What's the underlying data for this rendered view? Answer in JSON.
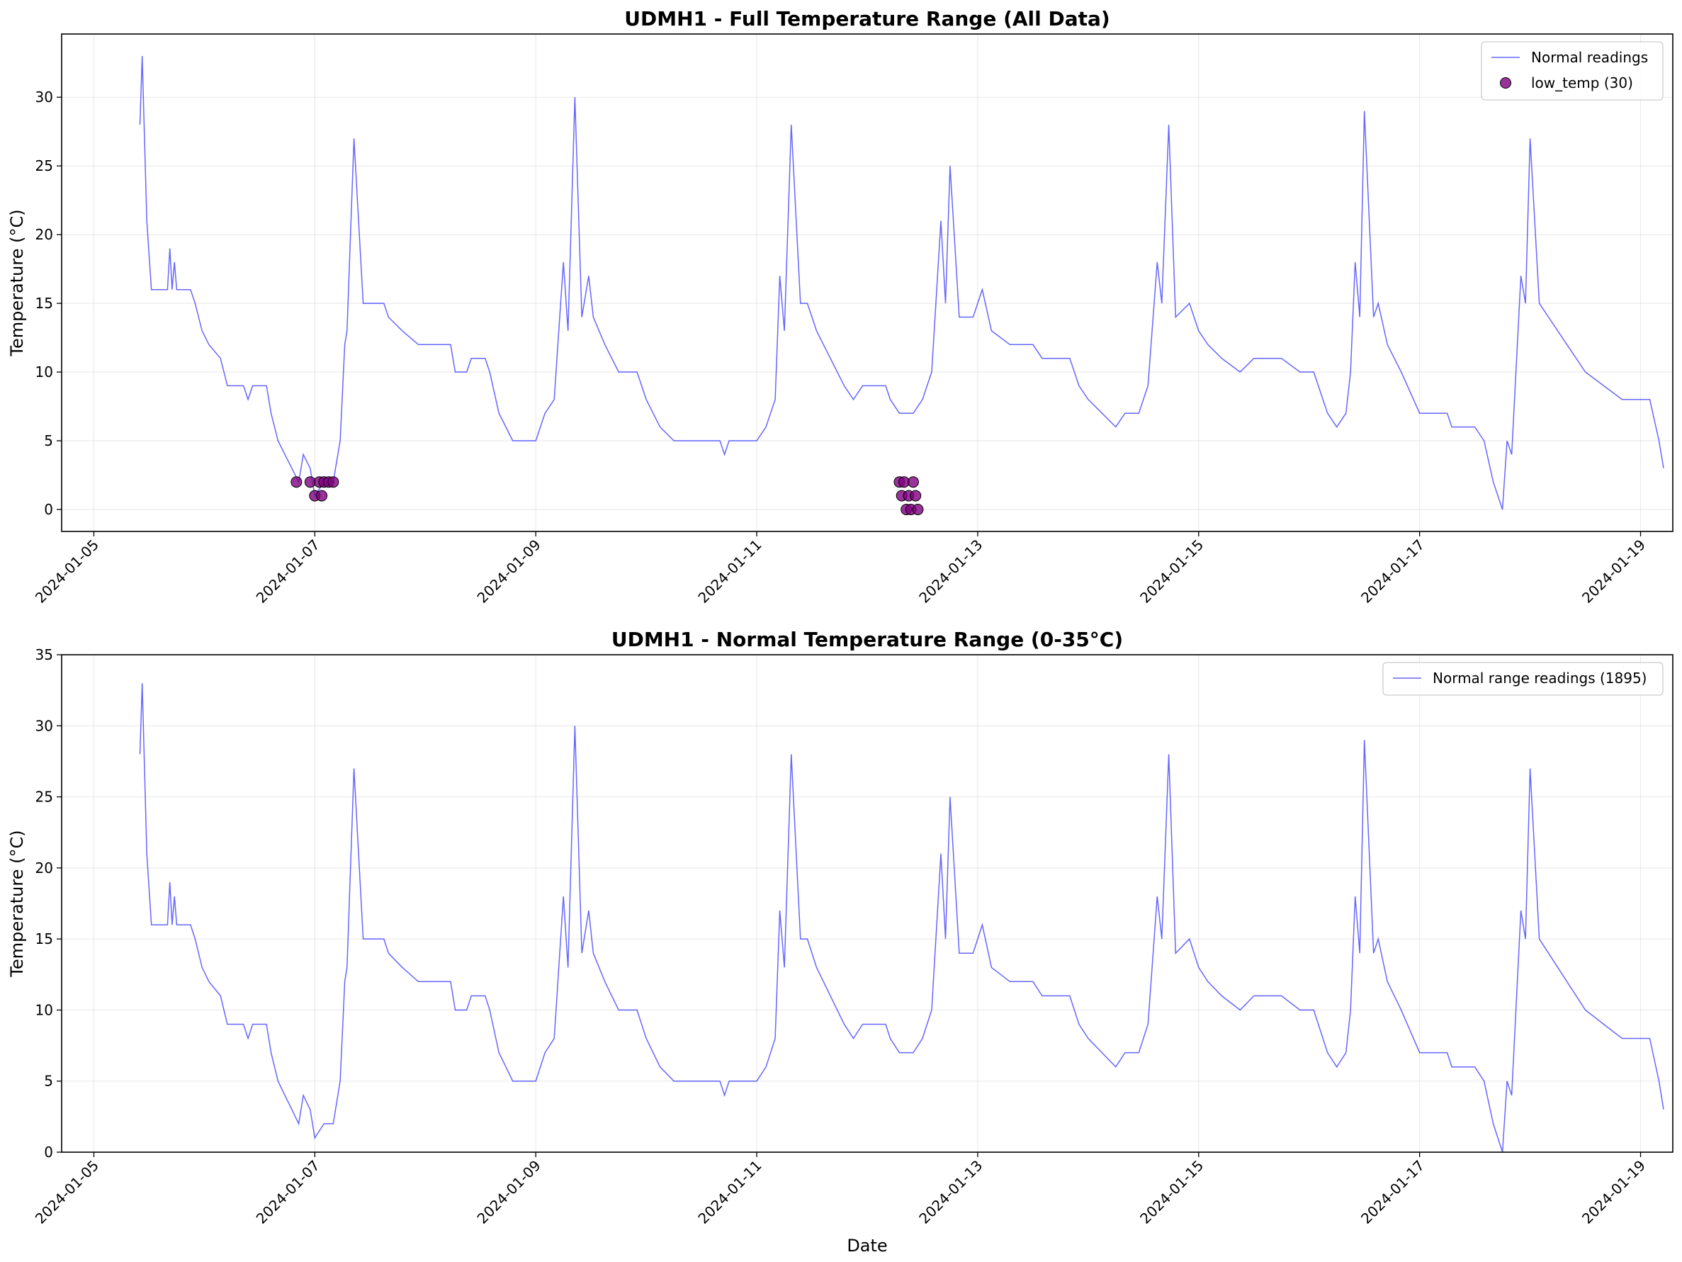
{
  "chart_data": [
    {
      "type": "line",
      "title": "UDMH1 - Full Temperature Range (All Data)",
      "xlabel": "",
      "ylabel": "Temperature (°C)",
      "xlim": [
        "2024-01-04T17:00",
        "2024-01-19T07:00"
      ],
      "ylim": [
        -1.6,
        34.6
      ],
      "yticks": [
        0,
        5,
        10,
        15,
        20,
        25,
        30
      ],
      "xticks": [
        "2024-01-05",
        "2024-01-07",
        "2024-01-09",
        "2024-01-11",
        "2024-01-13",
        "2024-01-15",
        "2024-01-17",
        "2024-01-19"
      ],
      "grid": true,
      "legend_position": "top-right",
      "series": [
        {
          "name": "Normal readings",
          "kind": "line",
          "color": "#0000ff",
          "points": [
            [
              "2024-01-05T10:00",
              28
            ],
            [
              "2024-01-05T11:00",
              33
            ],
            [
              "2024-01-05T12:00",
              21
            ],
            [
              "2024-01-05T13:00",
              16
            ],
            [
              "2024-01-05T17:00",
              16
            ],
            [
              "2024-01-05T18:00",
              19
            ],
            [
              "2024-01-05T19:00",
              16
            ],
            [
              "2024-01-05T20:00",
              18
            ],
            [
              "2024-01-05T21:00",
              16
            ],
            [
              "2024-01-06T00:00",
              15
            ],
            [
              "2024-01-06T03:00",
              12
            ],
            [
              "2024-01-06T07:00",
              10
            ],
            [
              "2024-01-06T10:00",
              9
            ],
            [
              "2024-01-06T13:00",
              8
            ],
            [
              "2024-01-06T15:00",
              9
            ],
            [
              "2024-01-06T19:00",
              7
            ],
            [
              "2024-01-06T21:00",
              5
            ],
            [
              "2024-01-07T00:00",
              3
            ],
            [
              "2024-01-07T02:00",
              4
            ],
            [
              "2024-01-07T03:00",
              2
            ],
            [
              "2024-01-07T05:00",
              1
            ],
            [
              "2024-01-07T08:00",
              2
            ],
            [
              "2024-01-07T09:00",
              6
            ],
            [
              "2024-01-07T10:00",
              13
            ],
            [
              "2024-01-07T11:00",
              27
            ],
            [
              "2024-01-07T12:00",
              16
            ],
            [
              "2024-01-07T13:00",
              15
            ],
            [
              "2024-01-07T18:00",
              14
            ],
            [
              "2024-01-07T20:00",
              13
            ],
            [
              "2024-01-08T00:00",
              12
            ],
            [
              "2024-01-08T06:00",
              11
            ],
            [
              "2024-01-07T07:00",
              10
            ]
          ]
        },
        {
          "name": "low_temp (30)",
          "kind": "scatter",
          "color": "#800080",
          "points": [
            [
              "2024-01-06T20:00",
              2
            ],
            [
              "2024-01-06T23:00",
              2
            ],
            [
              "2024-01-07T00:00",
              1
            ],
            [
              "2024-01-07T01:00",
              2
            ],
            [
              "2024-01-07T01:30",
              1
            ],
            [
              "2024-01-07T02:00",
              2
            ],
            [
              "2024-01-07T03:00",
              2
            ],
            [
              "2024-01-07T04:00",
              2
            ],
            [
              "2024-01-12T07:00",
              2
            ],
            [
              "2024-01-12T07:30",
              1
            ],
            [
              "2024-01-12T08:00",
              2
            ],
            [
              "2024-01-12T08:30",
              0
            ],
            [
              "2024-01-12T09:00",
              1
            ],
            [
              "2024-01-12T09:30",
              0
            ],
            [
              "2024-01-12T10:00",
              2
            ],
            [
              "2024-01-12T10:30",
              1
            ],
            [
              "2024-01-12T11:00",
              0
            ]
          ]
        }
      ]
    },
    {
      "type": "line",
      "title": "UDMH1 - Normal Temperature Range (0-35°C)",
      "xlabel": "Date",
      "ylabel": "Temperature (°C)",
      "xlim": [
        "2024-01-04T17:00",
        "2024-01-19T07:00"
      ],
      "ylim": [
        0,
        35
      ],
      "yticks": [
        0,
        5,
        10,
        15,
        20,
        25,
        30,
        35
      ],
      "xticks": [
        "2024-01-05",
        "2024-01-07",
        "2024-01-09",
        "2024-01-11",
        "2024-01-13",
        "2024-01-15",
        "2024-01-17",
        "2024-01-19"
      ],
      "grid": true,
      "legend_position": "top-right",
      "series": [
        {
          "name": "Normal range readings (1895)",
          "kind": "line",
          "color": "#0000ff",
          "points": "same as Normal readings"
        }
      ]
    }
  ],
  "readings": [
    [
      "2024-01-05T10:00",
      28
    ],
    [
      "2024-01-05T10:30",
      33
    ],
    [
      "2024-01-05T11:30",
      21
    ],
    [
      "2024-01-05T12:30",
      16
    ],
    [
      "2024-01-05T16:00",
      16
    ],
    [
      "2024-01-05T16:30",
      19
    ],
    [
      "2024-01-05T17:00",
      16
    ],
    [
      "2024-01-05T17:30",
      18
    ],
    [
      "2024-01-05T18:00",
      16
    ],
    [
      "2024-01-05T21:00",
      16
    ],
    [
      "2024-01-05T22:00",
      15
    ],
    [
      "2024-01-05T23:30",
      13
    ],
    [
      "2024-01-06T01:00",
      12
    ],
    [
      "2024-01-06T03:30",
      11
    ],
    [
      "2024-01-06T05:00",
      9
    ],
    [
      "2024-01-06T08:30",
      9
    ],
    [
      "2024-01-06T09:30",
      8
    ],
    [
      "2024-01-06T10:30",
      9
    ],
    [
      "2024-01-06T13:30",
      9
    ],
    [
      "2024-01-06T14:30",
      7
    ],
    [
      "2024-01-06T16:00",
      5
    ],
    [
      "2024-01-06T17:30",
      4
    ],
    [
      "2024-01-06T19:00",
      3
    ],
    [
      "2024-01-06T20:30",
      2
    ],
    [
      "2024-01-06T21:30",
      4
    ],
    [
      "2024-01-06T23:00",
      3
    ],
    [
      "2024-01-07T00:00",
      1
    ],
    [
      "2024-01-07T02:00",
      2
    ],
    [
      "2024-01-07T04:00",
      2
    ],
    [
      "2024-01-07T05:30",
      5
    ],
    [
      "2024-01-07T06:30",
      12
    ],
    [
      "2024-01-07T07:00",
      13
    ],
    [
      "2024-01-07T08:30",
      27
    ],
    [
      "2024-01-07T10:30",
      15
    ],
    [
      "2024-01-07T15:00",
      15
    ],
    [
      "2024-01-07T16:00",
      14
    ],
    [
      "2024-01-07T19:00",
      13
    ],
    [
      "2024-01-07T22:30",
      12
    ],
    [
      "2024-01-08T05:30",
      12
    ],
    [
      "2024-01-08T06:30",
      10
    ],
    [
      "2024-01-08T09:00",
      10
    ],
    [
      "2024-01-08T10:00",
      11
    ],
    [
      "2024-01-08T13:00",
      11
    ],
    [
      "2024-01-08T14:00",
      10
    ],
    [
      "2024-01-08T16:00",
      7
    ],
    [
      "2024-01-08T17:30",
      6
    ],
    [
      "2024-01-08T19:00",
      5
    ],
    [
      "2024-01-09T00:00",
      5
    ],
    [
      "2024-01-09T02:00",
      7
    ],
    [
      "2024-01-09T04:00",
      8
    ],
    [
      "2024-01-09T06:00",
      18
    ],
    [
      "2024-01-09T07:00",
      13
    ],
    [
      "2024-01-09T08:30",
      30
    ],
    [
      "2024-01-09T10:00",
      14
    ],
    [
      "2024-01-09T11:30",
      17
    ],
    [
      "2024-01-09T12:30",
      14
    ],
    [
      "2024-01-09T15:00",
      12
    ],
    [
      "2024-01-09T18:00",
      10
    ],
    [
      "2024-01-09T22:00",
      10
    ],
    [
      "2024-01-10T00:00",
      8
    ],
    [
      "2024-01-10T03:00",
      6
    ],
    [
      "2024-01-10T06:00",
      5
    ],
    [
      "2024-01-10T12:00",
      5
    ],
    [
      "2024-01-10T16:00",
      5
    ],
    [
      "2024-01-10T17:00",
      4
    ],
    [
      "2024-01-10T18:00",
      5
    ],
    [
      "2024-01-11T00:00",
      5
    ],
    [
      "2024-01-11T02:00",
      6
    ],
    [
      "2024-01-11T04:00",
      8
    ],
    [
      "2024-01-11T05:00",
      17
    ],
    [
      "2024-01-11T06:00",
      13
    ],
    [
      "2024-01-11T07:30",
      28
    ],
    [
      "2024-01-11T09:30",
      15
    ],
    [
      "2024-01-11T11:00",
      15
    ],
    [
      "2024-01-11T13:00",
      13
    ],
    [
      "2024-01-11T16:00",
      11
    ],
    [
      "2024-01-11T19:00",
      9
    ],
    [
      "2024-01-11T21:00",
      8
    ],
    [
      "2024-01-11T23:00",
      9
    ],
    [
      "2024-01-12T04:00",
      9
    ],
    [
      "2024-01-12T05:00",
      8
    ],
    [
      "2024-01-12T07:00",
      7
    ],
    [
      "2024-01-12T10:00",
      7
    ],
    [
      "2024-01-12T12:00",
      8
    ],
    [
      "2024-01-12T14:00",
      10
    ],
    [
      "2024-01-12T16:00",
      21
    ],
    [
      "2024-01-12T17:00",
      15
    ],
    [
      "2024-01-12T18:00",
      25
    ],
    [
      "2024-01-12T20:00",
      14
    ],
    [
      "2024-01-12T23:00",
      14
    ],
    [
      "2024-01-13T01:00",
      16
    ],
    [
      "2024-01-13T03:00",
      13
    ],
    [
      "2024-01-13T07:00",
      12
    ],
    [
      "2024-01-13T12:00",
      12
    ],
    [
      "2024-01-13T14:00",
      11
    ],
    [
      "2024-01-13T20:00",
      11
    ],
    [
      "2024-01-13T22:00",
      9
    ],
    [
      "2024-01-14T00:00",
      8
    ],
    [
      "2024-01-14T03:00",
      7
    ],
    [
      "2024-01-14T06:00",
      6
    ],
    [
      "2024-01-14T08:00",
      7
    ],
    [
      "2024-01-14T11:00",
      7
    ],
    [
      "2024-01-14T13:00",
      9
    ],
    [
      "2024-01-14T15:00",
      18
    ],
    [
      "2024-01-14T16:00",
      15
    ],
    [
      "2024-01-14T17:30",
      28
    ],
    [
      "2024-01-14T19:00",
      14
    ],
    [
      "2024-01-14T22:00",
      15
    ],
    [
      "2024-01-15T00:00",
      13
    ],
    [
      "2024-01-15T02:00",
      12
    ],
    [
      "2024-01-15T05:00",
      11
    ],
    [
      "2024-01-15T09:00",
      10
    ],
    [
      "2024-01-15T12:00",
      11
    ],
    [
      "2024-01-15T18:00",
      11
    ],
    [
      "2024-01-15T22:00",
      10
    ],
    [
      "2024-01-16T01:00",
      10
    ],
    [
      "2024-01-16T02:00",
      9
    ],
    [
      "2024-01-16T04:00",
      7
    ],
    [
      "2024-01-16T06:00",
      6
    ],
    [
      "2024-01-16T08:00",
      7
    ],
    [
      "2024-01-16T09:00",
      10
    ],
    [
      "2024-01-16T10:00",
      18
    ],
    [
      "2024-01-16T11:00",
      14
    ],
    [
      "2024-01-16T12:00",
      29
    ],
    [
      "2024-01-16T14:00",
      14
    ],
    [
      "2024-01-16T15:00",
      15
    ],
    [
      "2024-01-16T17:00",
      12
    ],
    [
      "2024-01-16T20:00",
      10
    ],
    [
      "2024-01-17T00:00",
      7
    ],
    [
      "2024-01-17T06:00",
      7
    ],
    [
      "2024-01-17T07:00",
      6
    ],
    [
      "2024-01-17T12:00",
      6
    ],
    [
      "2024-01-17T14:00",
      5
    ],
    [
      "2024-01-17T16:00",
      2
    ],
    [
      "2024-01-17T17:00",
      1
    ],
    [
      "2024-01-17T18:00",
      0
    ],
    [
      "2024-01-17T19:00",
      5
    ],
    [
      "2024-01-17T20:00",
      4
    ],
    [
      "2024-01-17T22:00",
      17
    ],
    [
      "2024-01-17T23:00",
      15
    ],
    [
      "2024-01-18T00:00",
      27
    ],
    [
      "2024-01-18T02:00",
      15
    ],
    [
      "2024-01-18T04:00",
      14
    ],
    [
      "2024-01-18T08:00",
      12
    ],
    [
      "2024-01-18T12:00",
      10
    ],
    [
      "2024-01-18T16:00",
      9
    ],
    [
      "2024-01-18T20:00",
      8
    ],
    [
      "2024-01-19T02:00",
      8
    ],
    [
      "2024-01-19T04:00",
      5
    ],
    [
      "2024-01-19T05:00",
      3
    ]
  ]
}
